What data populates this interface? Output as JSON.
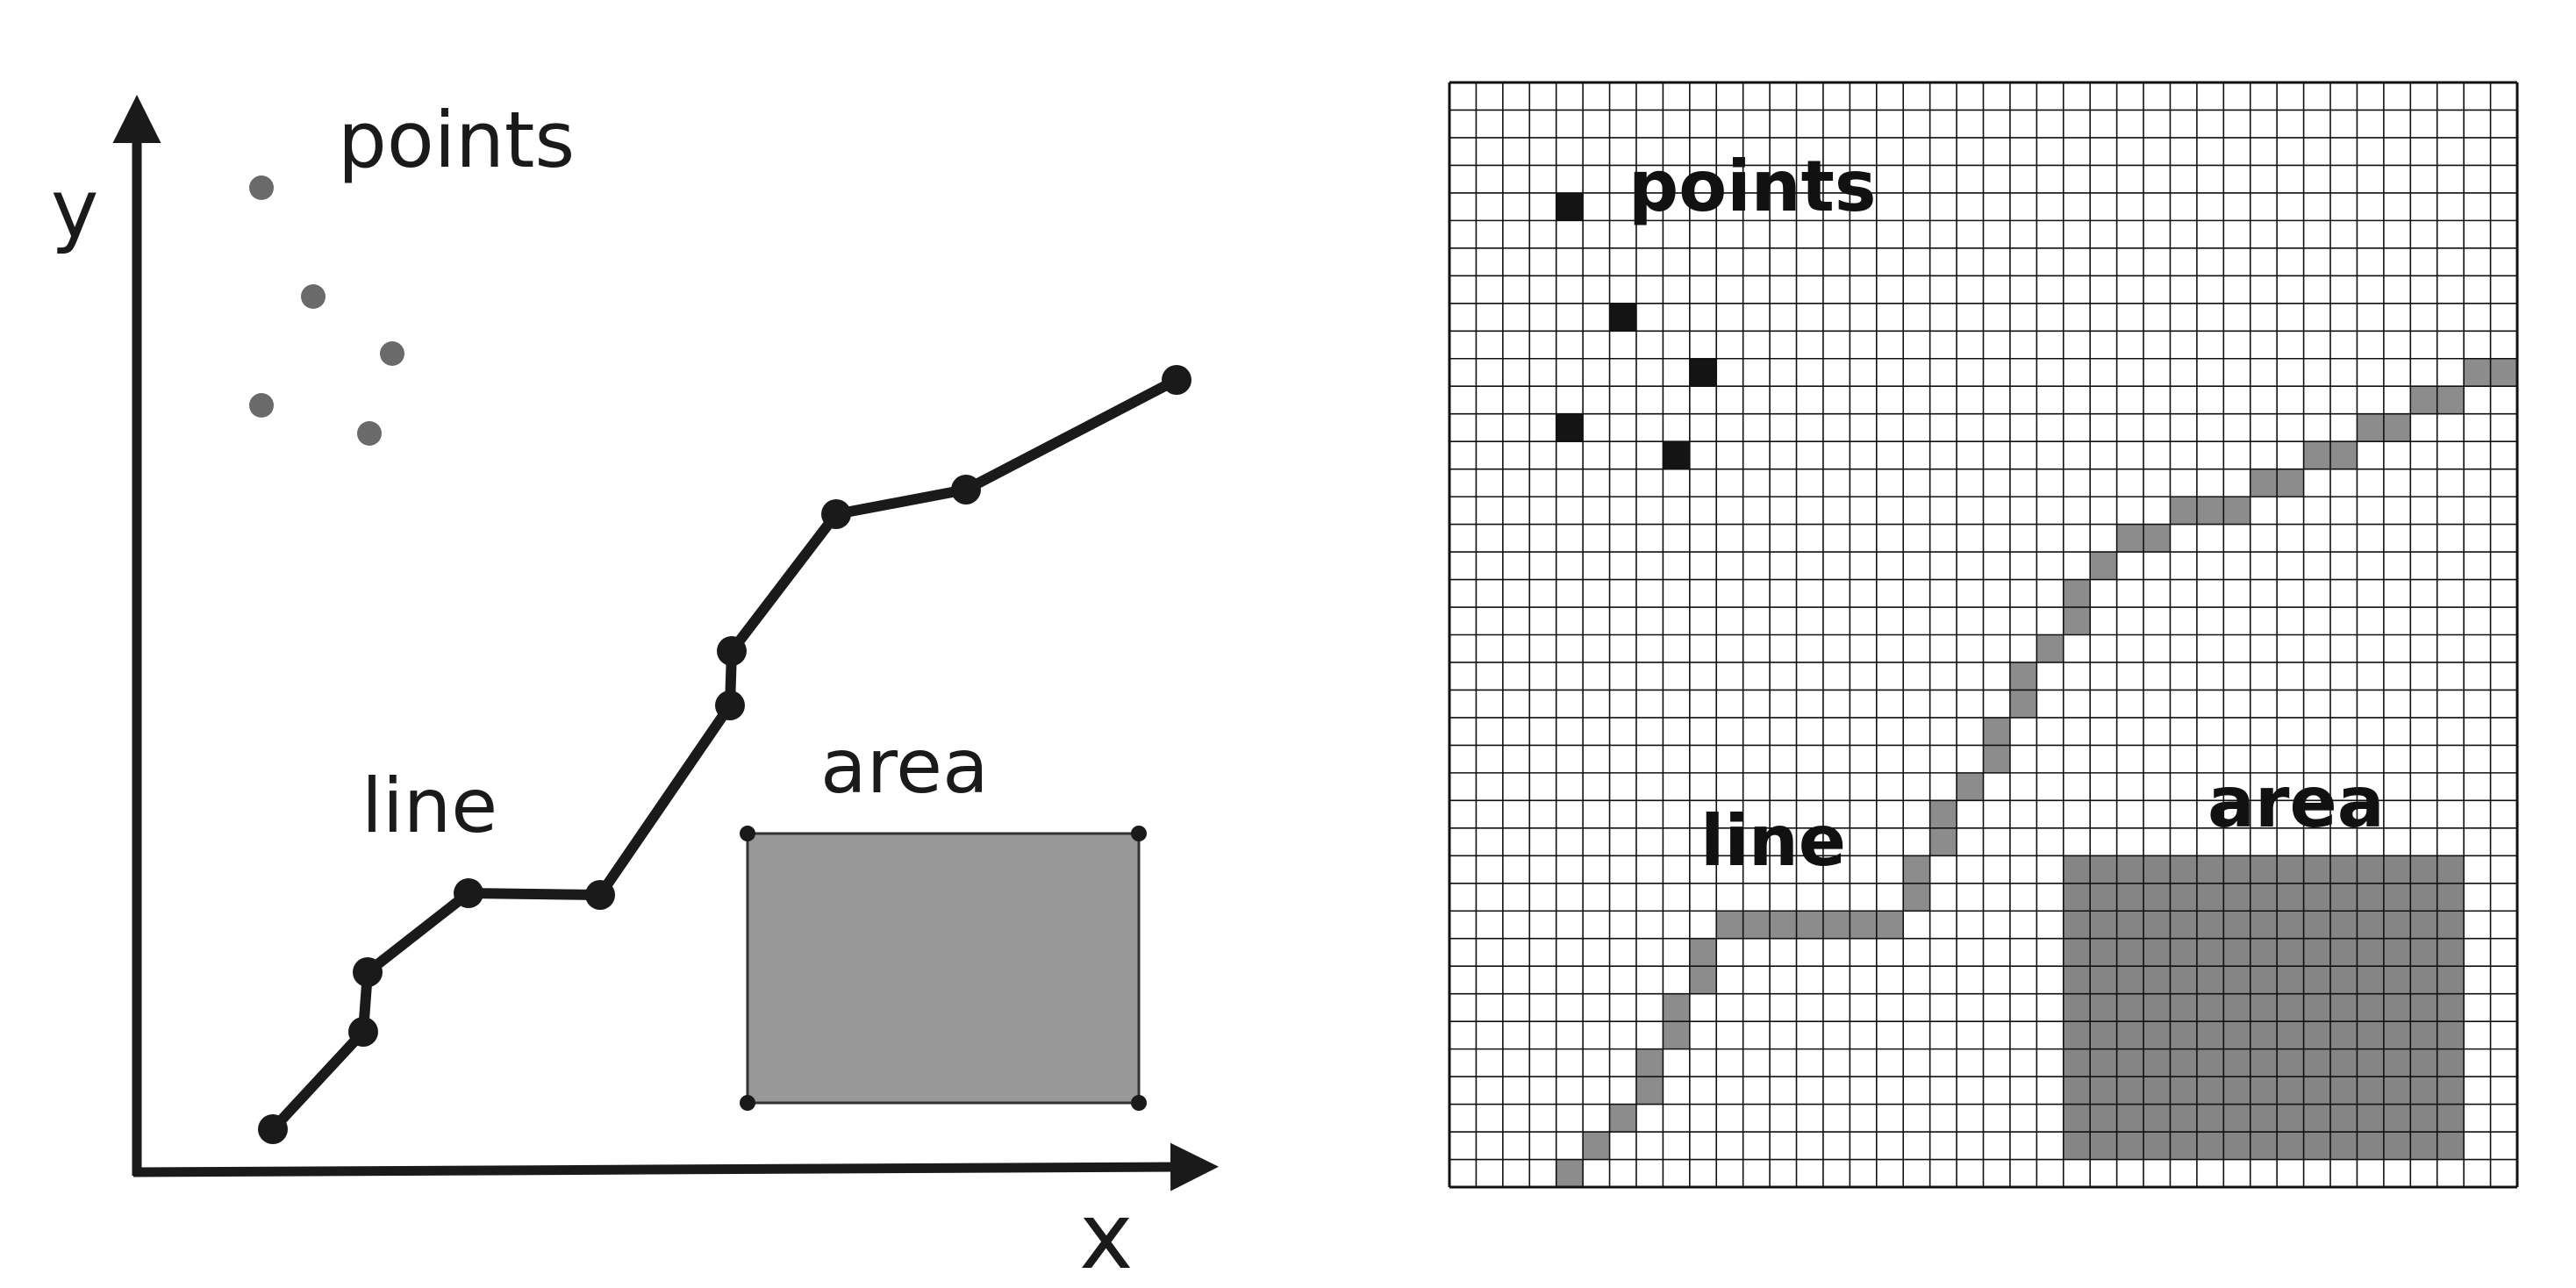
{
  "vector_panel": {
    "x_axis_label": "x",
    "y_axis_label": "y",
    "points_label": "points",
    "line_label": "line",
    "area_label": "area",
    "colors": {
      "stroke": "#1a1a1a",
      "point": "#6a6a6a",
      "area_fill": "#989898"
    }
  },
  "raster_panel": {
    "points_label": "points",
    "line_label": "line",
    "area_label": "area",
    "colors": {
      "grid_line": "#111111",
      "point_cell": "#141414",
      "line_cell": "#8c8c8c",
      "area_cell": "#858585"
    }
  }
}
